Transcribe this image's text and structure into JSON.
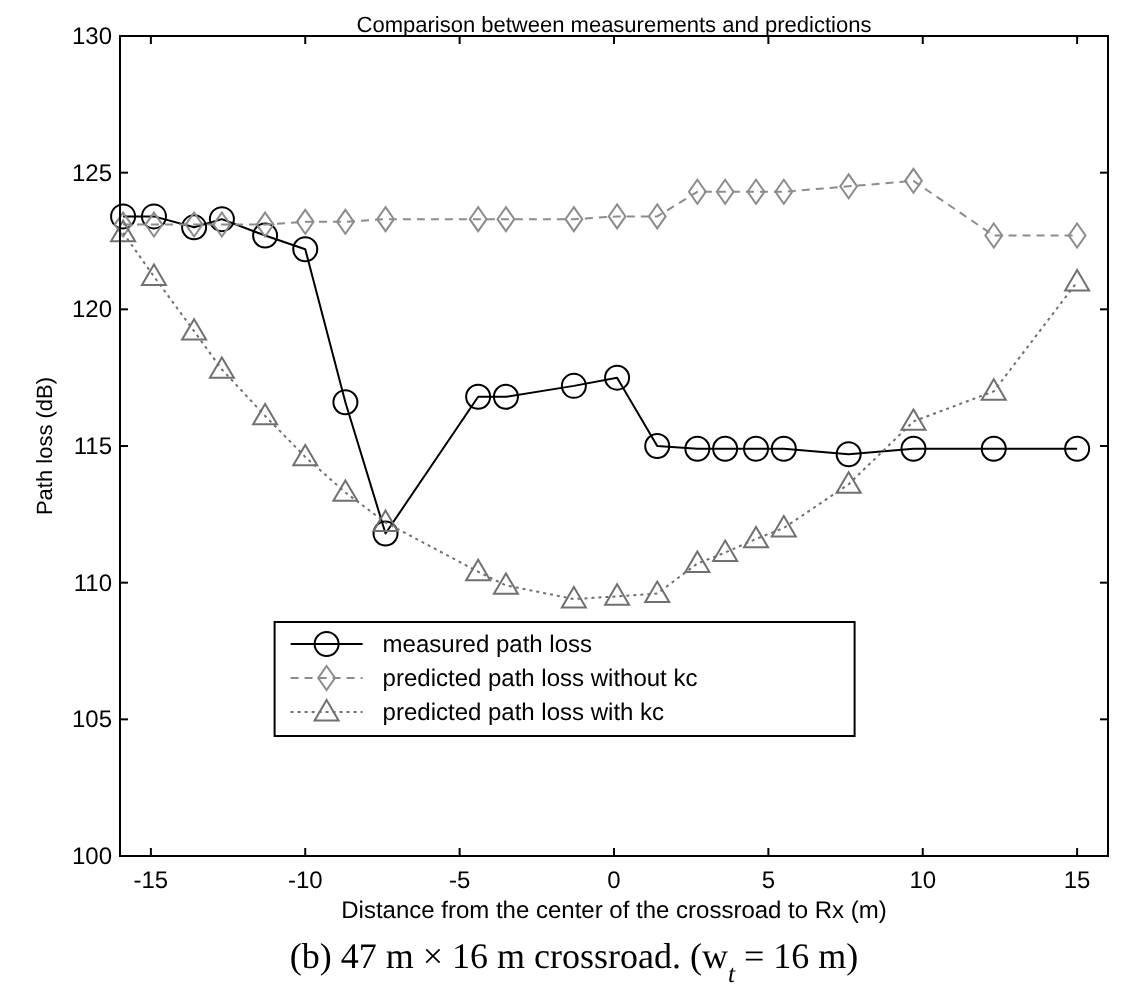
{
  "chart_data": {
    "type": "line",
    "title": "Comparison between measurements and predictions",
    "xlabel": "Distance from the center of the crossroad to Rx (m)",
    "ylabel": "Path loss (dB)",
    "annotations": [
      "(b) 47 m × 16 m crossroad. (w$_{t}$ = 16 m)"
    ],
    "x": [
      -15.9,
      -14.9,
      -13.6,
      -12.7,
      -11.3,
      -10.0,
      -8.7,
      -7.4,
      -4.4,
      -3.5,
      -1.3,
      0.1,
      1.4,
      2.7,
      3.6,
      4.6,
      5.5,
      7.6,
      9.7,
      12.3,
      15.0
    ],
    "series": [
      {
        "name": "measured path loss",
        "color": "#000000",
        "marker": "circle",
        "line_style": "solid",
        "values": [
          123.4,
          123.4,
          123.0,
          123.3,
          122.7,
          122.2,
          116.6,
          111.8,
          116.8,
          116.8,
          117.2,
          117.5,
          115.0,
          114.9,
          114.9,
          114.9,
          114.9,
          114.7,
          114.9,
          114.9,
          114.9
        ]
      },
      {
        "name": "predicted path loss without kc",
        "color": "#8c8c8c",
        "marker": "diamond",
        "line_style": "dashed",
        "values": [
          123.1,
          123.1,
          123.1,
          123.1,
          123.1,
          123.2,
          123.2,
          123.3,
          123.3,
          123.3,
          123.3,
          123.4,
          123.4,
          124.3,
          124.3,
          124.3,
          124.3,
          124.5,
          124.7,
          122.7,
          122.7
        ]
      },
      {
        "name": "predicted path loss with kc",
        "color": "#707070",
        "marker": "triangle",
        "line_style": "dotted",
        "values": [
          122.8,
          121.2,
          119.2,
          117.8,
          116.1,
          114.6,
          113.3,
          112.2,
          110.4,
          109.9,
          109.4,
          109.5,
          109.6,
          110.7,
          111.1,
          111.6,
          112.0,
          113.6,
          115.9,
          117.0,
          121.0
        ]
      }
    ],
    "xlim": [
      -16,
      16
    ],
    "xticks": [
      -15,
      -10,
      -5,
      0,
      5,
      10,
      15
    ],
    "ylim": [
      100,
      130
    ],
    "yticks": [
      100,
      105,
      110,
      115,
      120,
      125,
      130
    ],
    "legend": "bottom",
    "grid": false
  }
}
